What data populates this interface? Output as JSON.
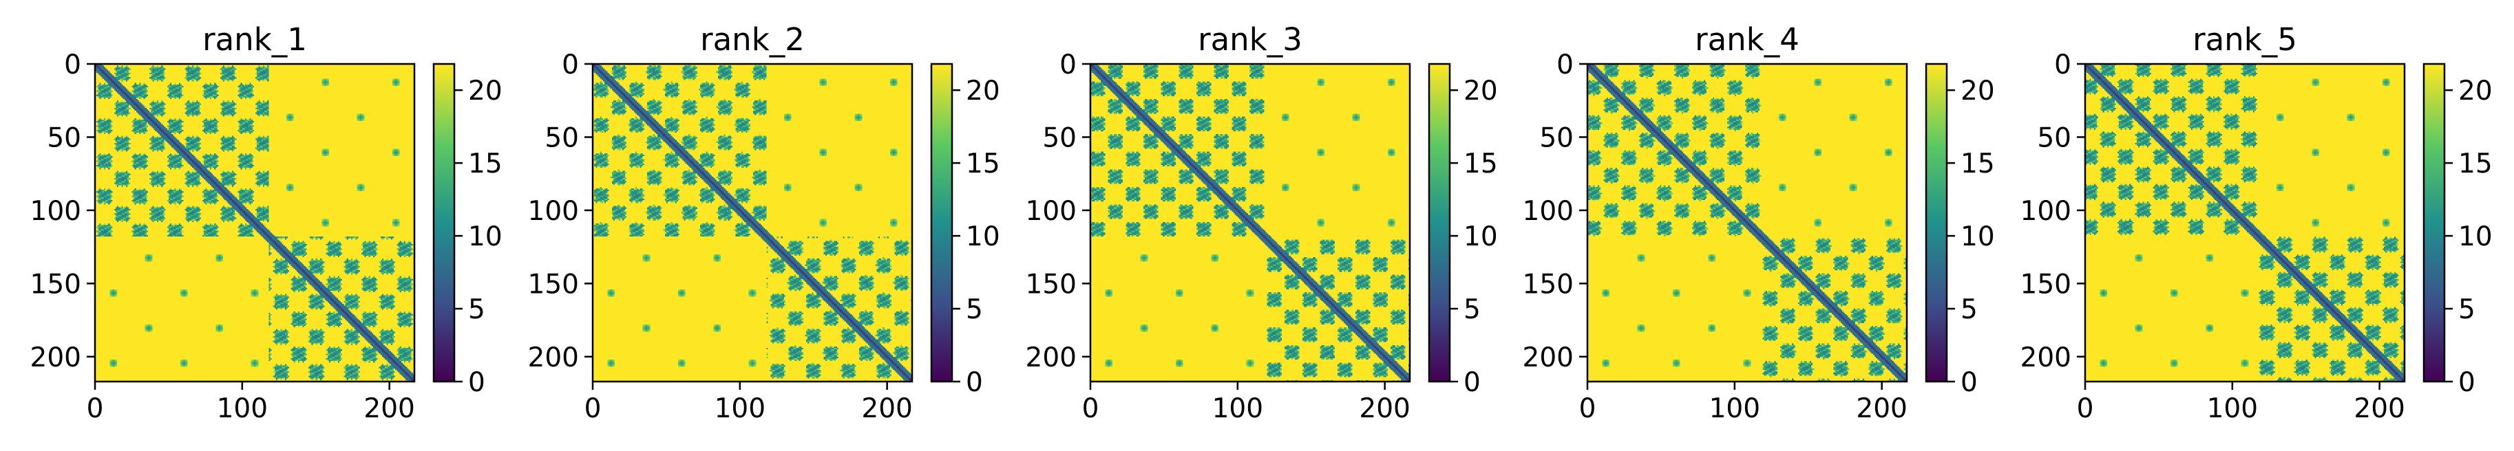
{
  "figure": {
    "background": "#ffffff",
    "colormap": "viridis",
    "colormap_stops": [
      "#440154",
      "#3b528b",
      "#21918c",
      "#5ec962",
      "#fde725"
    ]
  },
  "chart_data": [
    {
      "type": "heatmap",
      "title": "rank_1",
      "matrix_size": 217,
      "xlim": [
        0,
        217
      ],
      "ylim": [
        217,
        0
      ],
      "x_ticks": [
        0,
        100,
        200
      ],
      "y_ticks": [
        0,
        50,
        100,
        150,
        200
      ],
      "colorbar": {
        "vmin": 0,
        "vmax": 21.8,
        "ticks": [
          0,
          5,
          10,
          15,
          20
        ]
      },
      "domains": [
        [
          0,
          118
        ],
        [
          118,
          217
        ]
      ],
      "motif_period": 24,
      "background_value": 21.8,
      "diagonal_value": 3
    },
    {
      "type": "heatmap",
      "title": "rank_2",
      "matrix_size": 217,
      "xlim": [
        0,
        217
      ],
      "ylim": [
        217,
        0
      ],
      "x_ticks": [
        0,
        100,
        200
      ],
      "y_ticks": [
        0,
        50,
        100,
        150,
        200
      ],
      "colorbar": {
        "vmin": 0,
        "vmax": 21.8,
        "ticks": [
          0,
          5,
          10,
          15,
          20
        ]
      },
      "domains": [
        [
          0,
          118
        ],
        [
          118,
          217
        ]
      ],
      "motif_period": 24,
      "background_value": 21.8,
      "diagonal_value": 3
    },
    {
      "type": "heatmap",
      "title": "rank_3",
      "matrix_size": 217,
      "xlim": [
        0,
        217
      ],
      "ylim": [
        217,
        0
      ],
      "x_ticks": [
        0,
        100,
        200
      ],
      "y_ticks": [
        0,
        50,
        100,
        150,
        200
      ],
      "colorbar": {
        "vmin": 0,
        "vmax": 21.8,
        "ticks": [
          0,
          5,
          10,
          15,
          20
        ]
      },
      "domains": [
        [
          0,
          118
        ],
        [
          118,
          217
        ]
      ],
      "motif_period": 24,
      "background_value": 21.8,
      "diagonal_value": 3
    },
    {
      "type": "heatmap",
      "title": "rank_4",
      "matrix_size": 217,
      "xlim": [
        0,
        217
      ],
      "ylim": [
        217,
        0
      ],
      "x_ticks": [
        0,
        100,
        200
      ],
      "y_ticks": [
        0,
        50,
        100,
        150,
        200
      ],
      "colorbar": {
        "vmin": 0,
        "vmax": 21.8,
        "ticks": [
          0,
          5,
          10,
          15,
          20
        ]
      },
      "domains": [
        [
          0,
          118
        ],
        [
          118,
          217
        ]
      ],
      "motif_period": 24,
      "background_value": 21.8,
      "diagonal_value": 3
    },
    {
      "type": "heatmap",
      "title": "rank_5",
      "matrix_size": 217,
      "xlim": [
        0,
        217
      ],
      "ylim": [
        217,
        0
      ],
      "x_ticks": [
        0,
        100,
        200
      ],
      "y_ticks": [
        0,
        50,
        100,
        150,
        200
      ],
      "colorbar": {
        "vmin": 0,
        "vmax": 21.8,
        "ticks": [
          0,
          5,
          10,
          15,
          20
        ]
      },
      "domains": [
        [
          0,
          118
        ],
        [
          118,
          217
        ]
      ],
      "motif_period": 24,
      "background_value": 21.8,
      "diagonal_value": 3
    }
  ]
}
